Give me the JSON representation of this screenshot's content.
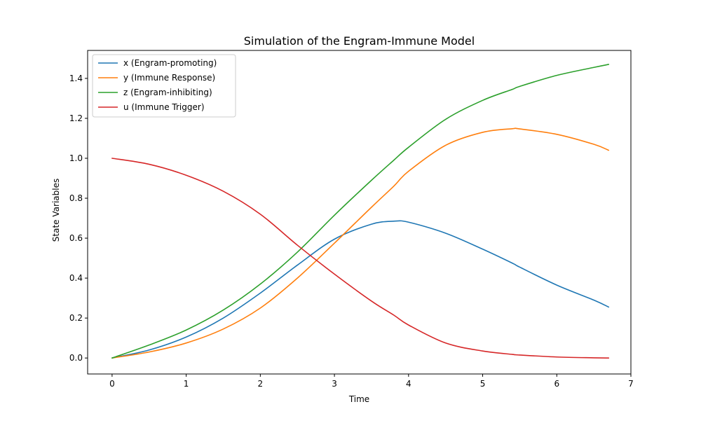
{
  "chart_data": {
    "type": "line",
    "title": "Simulation of the Engram-Immune Model",
    "xlabel": "Time",
    "ylabel": "State Variables",
    "xlim": [
      -0.33,
      7.0
    ],
    "ylim": [
      -0.08,
      1.54
    ],
    "xticks": [
      0,
      1,
      2,
      3,
      4,
      5,
      6,
      7
    ],
    "yticks": [
      0.0,
      0.2,
      0.4,
      0.6,
      0.8,
      1.0,
      1.2,
      1.4
    ],
    "xtick_labels": [
      "0",
      "1",
      "2",
      "3",
      "4",
      "5",
      "6",
      "7"
    ],
    "ytick_labels": [
      "0.0",
      "0.2",
      "0.4",
      "0.6",
      "0.8",
      "1.0",
      "1.2",
      "1.4"
    ],
    "grid": false,
    "legend_position": "upper-left",
    "x": [
      0.0,
      0.5,
      1.0,
      1.5,
      2.0,
      2.5,
      3.0,
      3.5,
      3.8,
      4.0,
      4.5,
      5.0,
      5.4,
      5.5,
      6.0,
      6.5,
      6.7
    ],
    "series": [
      {
        "name": "x (Engram-promoting)",
        "color": "#1f77b4",
        "values": [
          0.0,
          0.04,
          0.105,
          0.2,
          0.325,
          0.465,
          0.595,
          0.67,
          0.685,
          0.68,
          0.625,
          0.545,
          0.475,
          0.455,
          0.365,
          0.29,
          0.255
        ]
      },
      {
        "name": "y (Immune Response)",
        "color": "#ff7f0e",
        "values": [
          0.0,
          0.03,
          0.075,
          0.145,
          0.25,
          0.4,
          0.575,
          0.755,
          0.86,
          0.935,
          1.065,
          1.13,
          1.148,
          1.147,
          1.12,
          1.07,
          1.04
        ]
      },
      {
        "name": "z (Engram-inhibiting)",
        "color": "#2ca02c",
        "values": [
          0.0,
          0.065,
          0.14,
          0.24,
          0.37,
          0.53,
          0.715,
          0.89,
          0.99,
          1.055,
          1.195,
          1.29,
          1.345,
          1.36,
          1.415,
          1.455,
          1.47
        ]
      },
      {
        "name": "u (Immune Trigger)",
        "color": "#d62728",
        "values": [
          1.0,
          0.97,
          0.915,
          0.835,
          0.72,
          0.565,
          0.42,
          0.285,
          0.215,
          0.165,
          0.075,
          0.035,
          0.018,
          0.015,
          0.005,
          0.001,
          0.0
        ]
      }
    ]
  }
}
